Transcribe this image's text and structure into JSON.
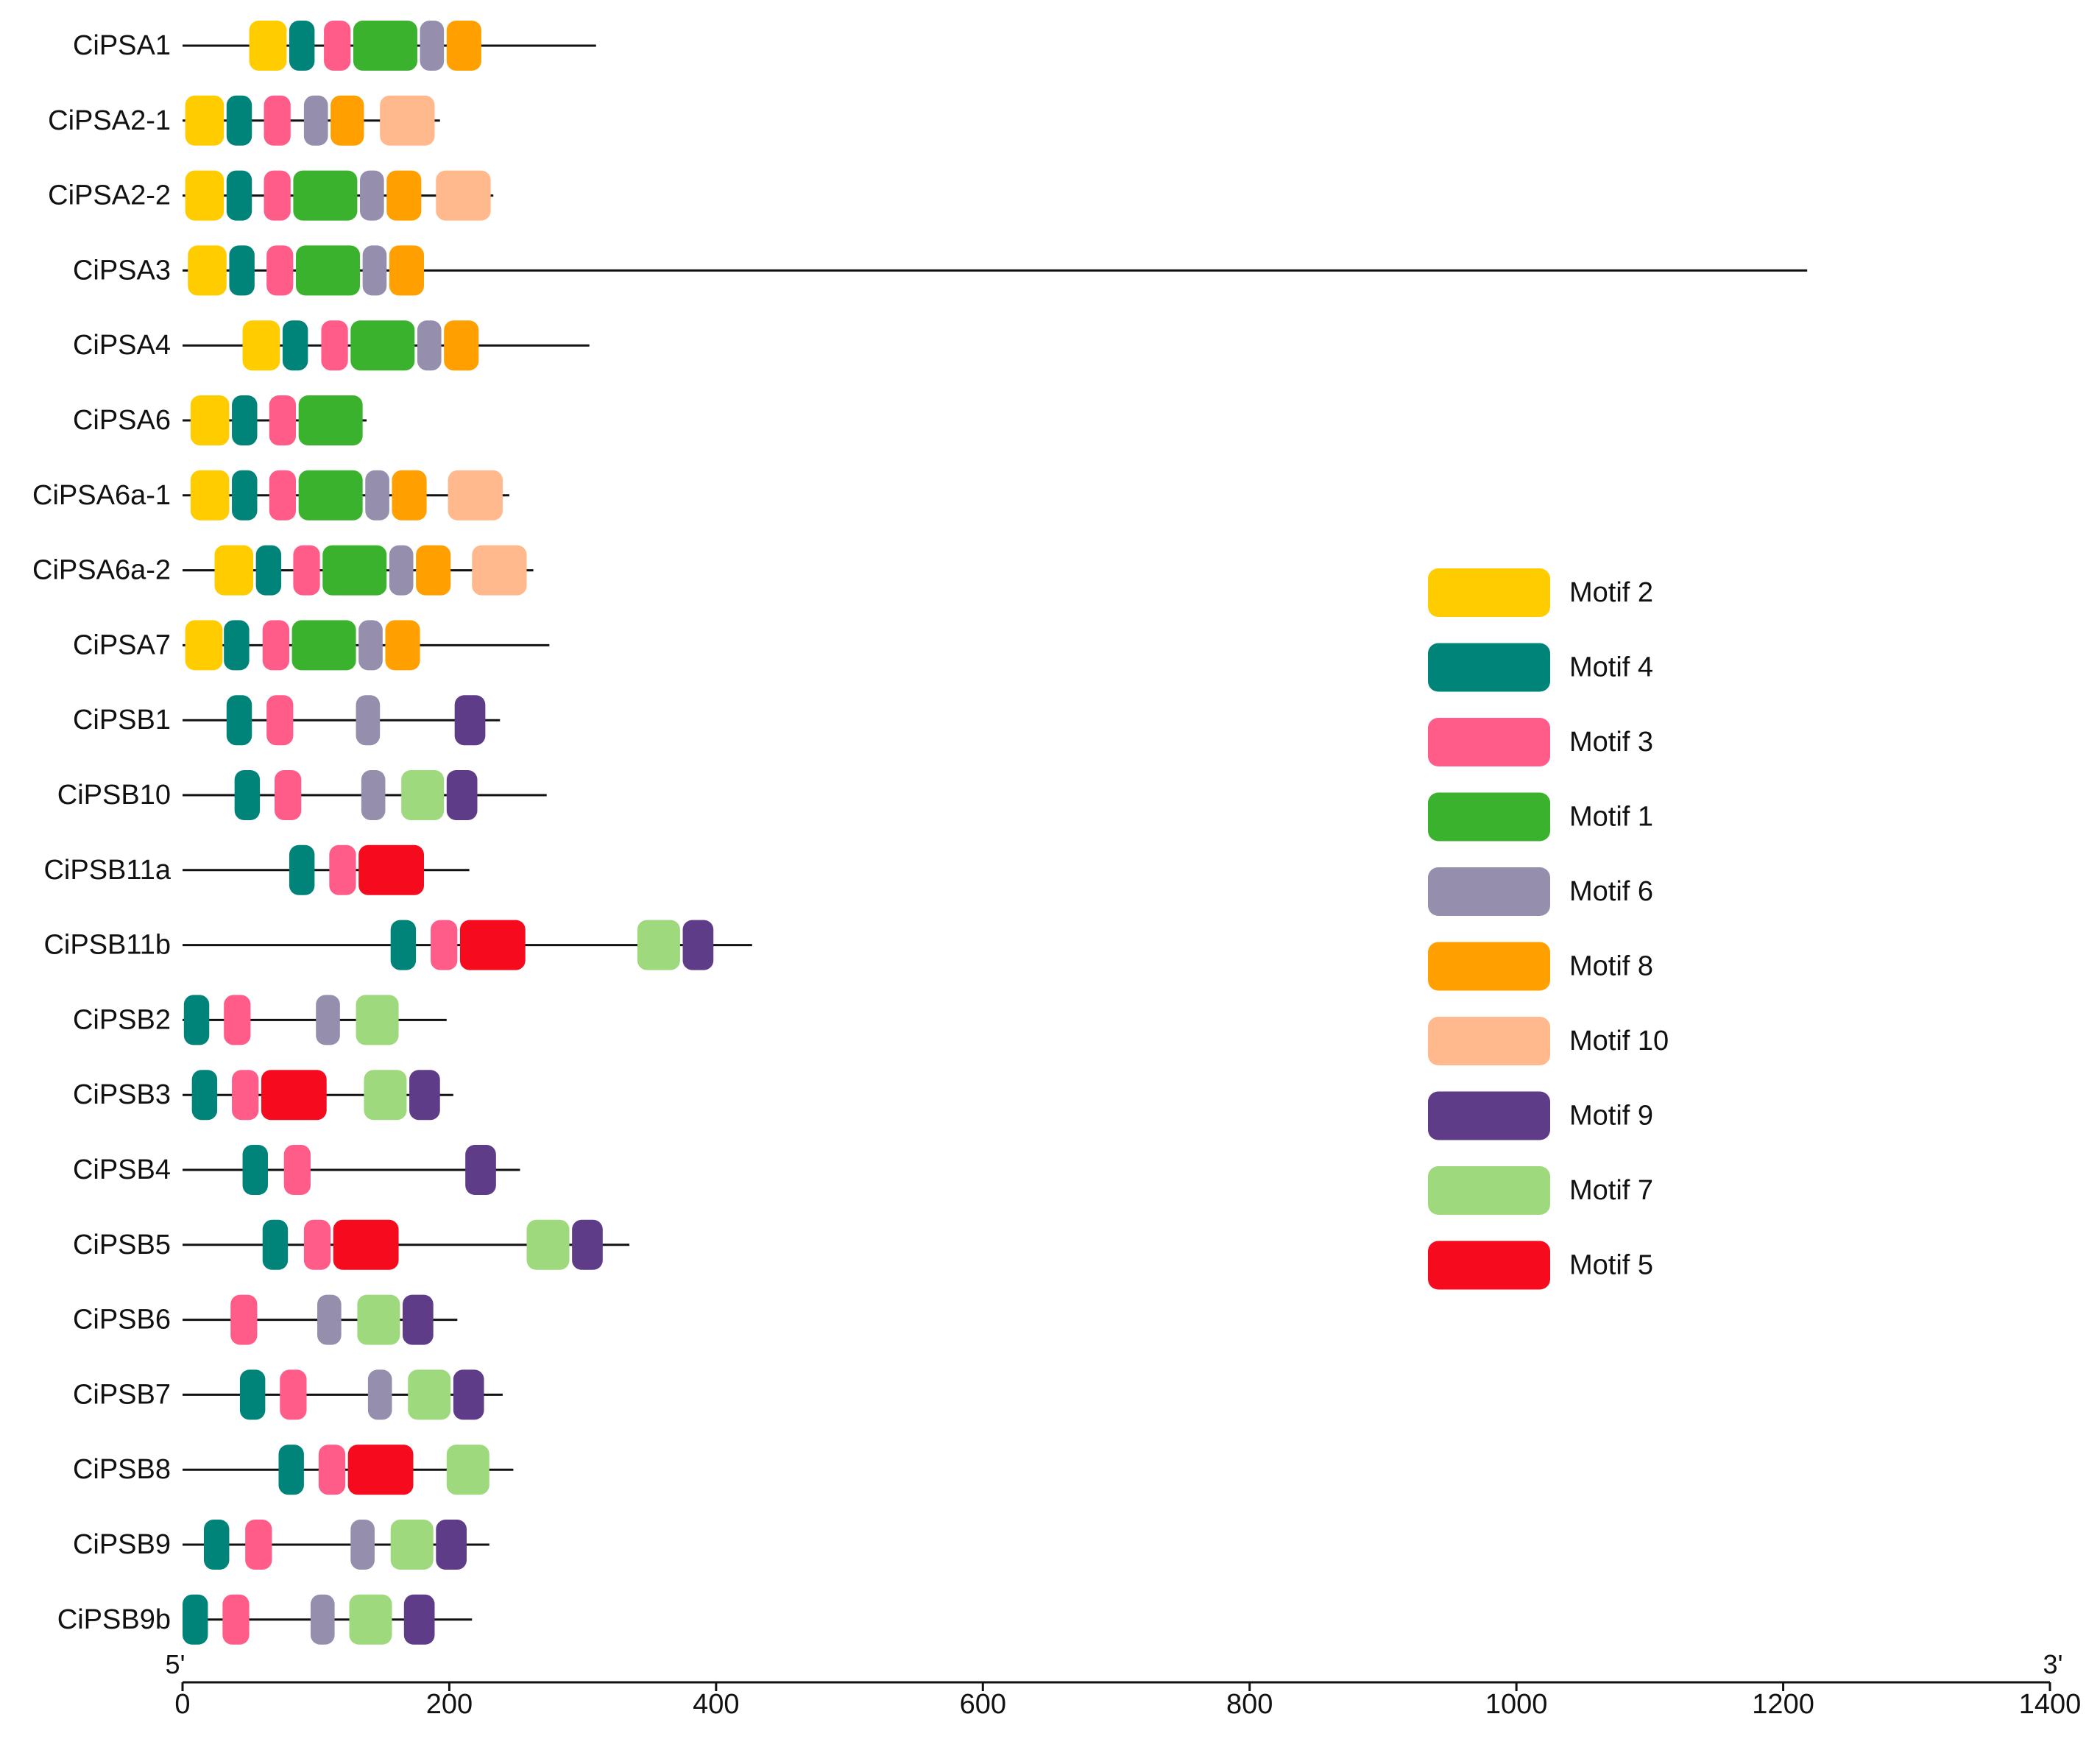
{
  "chart_data": {
    "type": "motif-diagram",
    "title": "",
    "xlabel": "",
    "ylabel": "",
    "xlim": [
      0,
      1400
    ],
    "xticks": [
      0,
      200,
      400,
      600,
      800,
      1000,
      1200,
      1400
    ],
    "start_label": "5'",
    "end_label": "3'",
    "legend": [
      {
        "motif": "2",
        "label": "Motif 2",
        "color": "#FFCC00"
      },
      {
        "motif": "4",
        "label": "Motif 4",
        "color": "#00847A"
      },
      {
        "motif": "3",
        "label": "Motif 3",
        "color": "#FF5C8A"
      },
      {
        "motif": "1",
        "label": "Motif 1",
        "color": "#3AB22E"
      },
      {
        "motif": "6",
        "label": "Motif 6",
        "color": "#958EAD"
      },
      {
        "motif": "8",
        "label": "Motif 8",
        "color": "#FFA000"
      },
      {
        "motif": "10",
        "label": "Motif 10",
        "color": "#FFB98C"
      },
      {
        "motif": "9",
        "label": "Motif 9",
        "color": "#5E3C88"
      },
      {
        "motif": "7",
        "label": "Motif 7",
        "color": "#9FD97E"
      },
      {
        "motif": "5",
        "label": "Motif 5",
        "color": "#F50A1E"
      }
    ],
    "genes": [
      {
        "name": "CiPSA1",
        "start": 0,
        "length": 310,
        "motifs": [
          {
            "motif": "2",
            "start": 50,
            "end": 78
          },
          {
            "motif": "4",
            "start": 80,
            "end": 99
          },
          {
            "motif": "3",
            "start": 106,
            "end": 126
          },
          {
            "motif": "1",
            "start": 128,
            "end": 176
          },
          {
            "motif": "6",
            "start": 178,
            "end": 196
          },
          {
            "motif": "8",
            "start": 198,
            "end": 224
          }
        ]
      },
      {
        "name": "CiPSA2-1",
        "start": 0,
        "length": 193,
        "motifs": [
          {
            "motif": "2",
            "start": 2,
            "end": 31
          },
          {
            "motif": "4",
            "start": 33,
            "end": 52
          },
          {
            "motif": "3",
            "start": 61,
            "end": 81
          },
          {
            "motif": "6",
            "start": 91,
            "end": 109
          },
          {
            "motif": "8",
            "start": 111,
            "end": 136
          },
          {
            "motif": "10",
            "start": 148,
            "end": 189
          }
        ]
      },
      {
        "name": "CiPSA2-2",
        "start": 0,
        "length": 233,
        "motifs": [
          {
            "motif": "2",
            "start": 2,
            "end": 31
          },
          {
            "motif": "4",
            "start": 33,
            "end": 52
          },
          {
            "motif": "3",
            "start": 61,
            "end": 81
          },
          {
            "motif": "1",
            "start": 83,
            "end": 131
          },
          {
            "motif": "6",
            "start": 133,
            "end": 151
          },
          {
            "motif": "8",
            "start": 153,
            "end": 179
          },
          {
            "motif": "10",
            "start": 190,
            "end": 231
          }
        ]
      },
      {
        "name": "CiPSA3",
        "start": 0,
        "length": 1218,
        "motifs": [
          {
            "motif": "2",
            "start": 4,
            "end": 33
          },
          {
            "motif": "4",
            "start": 35,
            "end": 54
          },
          {
            "motif": "3",
            "start": 63,
            "end": 83
          },
          {
            "motif": "1",
            "start": 85,
            "end": 133
          },
          {
            "motif": "6",
            "start": 135,
            "end": 153
          },
          {
            "motif": "8",
            "start": 155,
            "end": 181
          }
        ]
      },
      {
        "name": "CiPSA4",
        "start": 0,
        "length": 305,
        "motifs": [
          {
            "motif": "2",
            "start": 45,
            "end": 73
          },
          {
            "motif": "4",
            "start": 75,
            "end": 94
          },
          {
            "motif": "3",
            "start": 104,
            "end": 124
          },
          {
            "motif": "1",
            "start": 126,
            "end": 174
          },
          {
            "motif": "6",
            "start": 176,
            "end": 194
          },
          {
            "motif": "8",
            "start": 196,
            "end": 222
          }
        ]
      },
      {
        "name": "CiPSA6",
        "start": 0,
        "length": 138,
        "motifs": [
          {
            "motif": "2",
            "start": 6,
            "end": 35
          },
          {
            "motif": "4",
            "start": 37,
            "end": 56
          },
          {
            "motif": "3",
            "start": 65,
            "end": 85
          },
          {
            "motif": "1",
            "start": 87,
            "end": 135
          }
        ]
      },
      {
        "name": "CiPSA6a-1",
        "start": 0,
        "length": 245,
        "motifs": [
          {
            "motif": "2",
            "start": 6,
            "end": 35
          },
          {
            "motif": "4",
            "start": 37,
            "end": 56
          },
          {
            "motif": "3",
            "start": 65,
            "end": 85
          },
          {
            "motif": "1",
            "start": 87,
            "end": 135
          },
          {
            "motif": "6",
            "start": 137,
            "end": 155
          },
          {
            "motif": "8",
            "start": 157,
            "end": 183
          },
          {
            "motif": "10",
            "start": 199,
            "end": 240
          }
        ]
      },
      {
        "name": "CiPSA6a-2",
        "start": 0,
        "length": 263,
        "motifs": [
          {
            "motif": "2",
            "start": 24,
            "end": 53
          },
          {
            "motif": "4",
            "start": 55,
            "end": 74
          },
          {
            "motif": "3",
            "start": 83,
            "end": 103
          },
          {
            "motif": "1",
            "start": 105,
            "end": 153
          },
          {
            "motif": "6",
            "start": 155,
            "end": 173
          },
          {
            "motif": "8",
            "start": 175,
            "end": 201
          },
          {
            "motif": "10",
            "start": 217,
            "end": 258
          }
        ]
      },
      {
        "name": "CiPSA7",
        "start": 0,
        "length": 275,
        "motifs": [
          {
            "motif": "2",
            "start": 2,
            "end": 30
          },
          {
            "motif": "4",
            "start": 31,
            "end": 50
          },
          {
            "motif": "3",
            "start": 60,
            "end": 80
          },
          {
            "motif": "1",
            "start": 82,
            "end": 130
          },
          {
            "motif": "6",
            "start": 132,
            "end": 150
          },
          {
            "motif": "8",
            "start": 152,
            "end": 178
          }
        ]
      },
      {
        "name": "CiPSB1",
        "start": 0,
        "length": 238,
        "motifs": [
          {
            "motif": "4",
            "start": 33,
            "end": 52
          },
          {
            "motif": "3",
            "start": 63,
            "end": 83
          },
          {
            "motif": "6",
            "start": 130,
            "end": 148
          },
          {
            "motif": "9",
            "start": 204,
            "end": 227
          }
        ]
      },
      {
        "name": "CiPSB10",
        "start": 0,
        "length": 273,
        "motifs": [
          {
            "motif": "4",
            "start": 39,
            "end": 58
          },
          {
            "motif": "3",
            "start": 69,
            "end": 89
          },
          {
            "motif": "6",
            "start": 134,
            "end": 152
          },
          {
            "motif": "7",
            "start": 164,
            "end": 196
          },
          {
            "motif": "9",
            "start": 198,
            "end": 221
          }
        ]
      },
      {
        "name": "CiPSB11a",
        "start": 0,
        "length": 215,
        "motifs": [
          {
            "motif": "4",
            "start": 80,
            "end": 99
          },
          {
            "motif": "3",
            "start": 110,
            "end": 130
          },
          {
            "motif": "5",
            "start": 132,
            "end": 181
          }
        ]
      },
      {
        "name": "CiPSB11b",
        "start": 0,
        "length": 427,
        "motifs": [
          {
            "motif": "4",
            "start": 156,
            "end": 175
          },
          {
            "motif": "3",
            "start": 186,
            "end": 206
          },
          {
            "motif": "5",
            "start": 208,
            "end": 257
          },
          {
            "motif": "7",
            "start": 341,
            "end": 373
          },
          {
            "motif": "9",
            "start": 375,
            "end": 398
          }
        ]
      },
      {
        "name": "CiPSB2",
        "start": 0,
        "length": 198,
        "motifs": [
          {
            "motif": "4",
            "start": 1,
            "end": 20
          },
          {
            "motif": "3",
            "start": 31,
            "end": 51
          },
          {
            "motif": "6",
            "start": 100,
            "end": 118
          },
          {
            "motif": "7",
            "start": 130,
            "end": 162
          }
        ]
      },
      {
        "name": "CiPSB3",
        "start": 0,
        "length": 203,
        "motifs": [
          {
            "motif": "4",
            "start": 7,
            "end": 26
          },
          {
            "motif": "3",
            "start": 37,
            "end": 57
          },
          {
            "motif": "5",
            "start": 59,
            "end": 108
          },
          {
            "motif": "7",
            "start": 136,
            "end": 168
          },
          {
            "motif": "9",
            "start": 170,
            "end": 193
          }
        ]
      },
      {
        "name": "CiPSB4",
        "start": 0,
        "length": 253,
        "motifs": [
          {
            "motif": "4",
            "start": 45,
            "end": 64
          },
          {
            "motif": "3",
            "start": 76,
            "end": 96
          },
          {
            "motif": "9",
            "start": 212,
            "end": 235
          }
        ]
      },
      {
        "name": "CiPSB5",
        "start": 0,
        "length": 335,
        "motifs": [
          {
            "motif": "4",
            "start": 60,
            "end": 79
          },
          {
            "motif": "3",
            "start": 91,
            "end": 111
          },
          {
            "motif": "5",
            "start": 113,
            "end": 162
          },
          {
            "motif": "7",
            "start": 258,
            "end": 290
          },
          {
            "motif": "9",
            "start": 292,
            "end": 315
          }
        ]
      },
      {
        "name": "CiPSB6",
        "start": 0,
        "length": 206,
        "motifs": [
          {
            "motif": "3",
            "start": 36,
            "end": 56
          },
          {
            "motif": "6",
            "start": 101,
            "end": 119
          },
          {
            "motif": "7",
            "start": 131,
            "end": 163
          },
          {
            "motif": "9",
            "start": 165,
            "end": 188
          }
        ]
      },
      {
        "name": "CiPSB7",
        "start": 0,
        "length": 240,
        "motifs": [
          {
            "motif": "4",
            "start": 43,
            "end": 62
          },
          {
            "motif": "3",
            "start": 73,
            "end": 93
          },
          {
            "motif": "6",
            "start": 139,
            "end": 157
          },
          {
            "motif": "7",
            "start": 169,
            "end": 201
          },
          {
            "motif": "9",
            "start": 203,
            "end": 226
          }
        ]
      },
      {
        "name": "CiPSB8",
        "start": 0,
        "length": 248,
        "motifs": [
          {
            "motif": "4",
            "start": 72,
            "end": 91
          },
          {
            "motif": "3",
            "start": 102,
            "end": 122
          },
          {
            "motif": "5",
            "start": 124,
            "end": 173
          },
          {
            "motif": "7",
            "start": 198,
            "end": 230
          }
        ]
      },
      {
        "name": "CiPSB9",
        "start": 0,
        "length": 230,
        "motifs": [
          {
            "motif": "4",
            "start": 16,
            "end": 35
          },
          {
            "motif": "3",
            "start": 47,
            "end": 67
          },
          {
            "motif": "6",
            "start": 126,
            "end": 144
          },
          {
            "motif": "7",
            "start": 156,
            "end": 188
          },
          {
            "motif": "9",
            "start": 190,
            "end": 213
          }
        ]
      },
      {
        "name": "CiPSB9b",
        "start": 0,
        "length": 217,
        "motifs": [
          {
            "motif": "4",
            "start": 0,
            "end": 19
          },
          {
            "motif": "3",
            "start": 30,
            "end": 50
          },
          {
            "motif": "6",
            "start": 96,
            "end": 114
          },
          {
            "motif": "7",
            "start": 125,
            "end": 157
          },
          {
            "motif": "9",
            "start": 166,
            "end": 189
          }
        ]
      }
    ]
  }
}
